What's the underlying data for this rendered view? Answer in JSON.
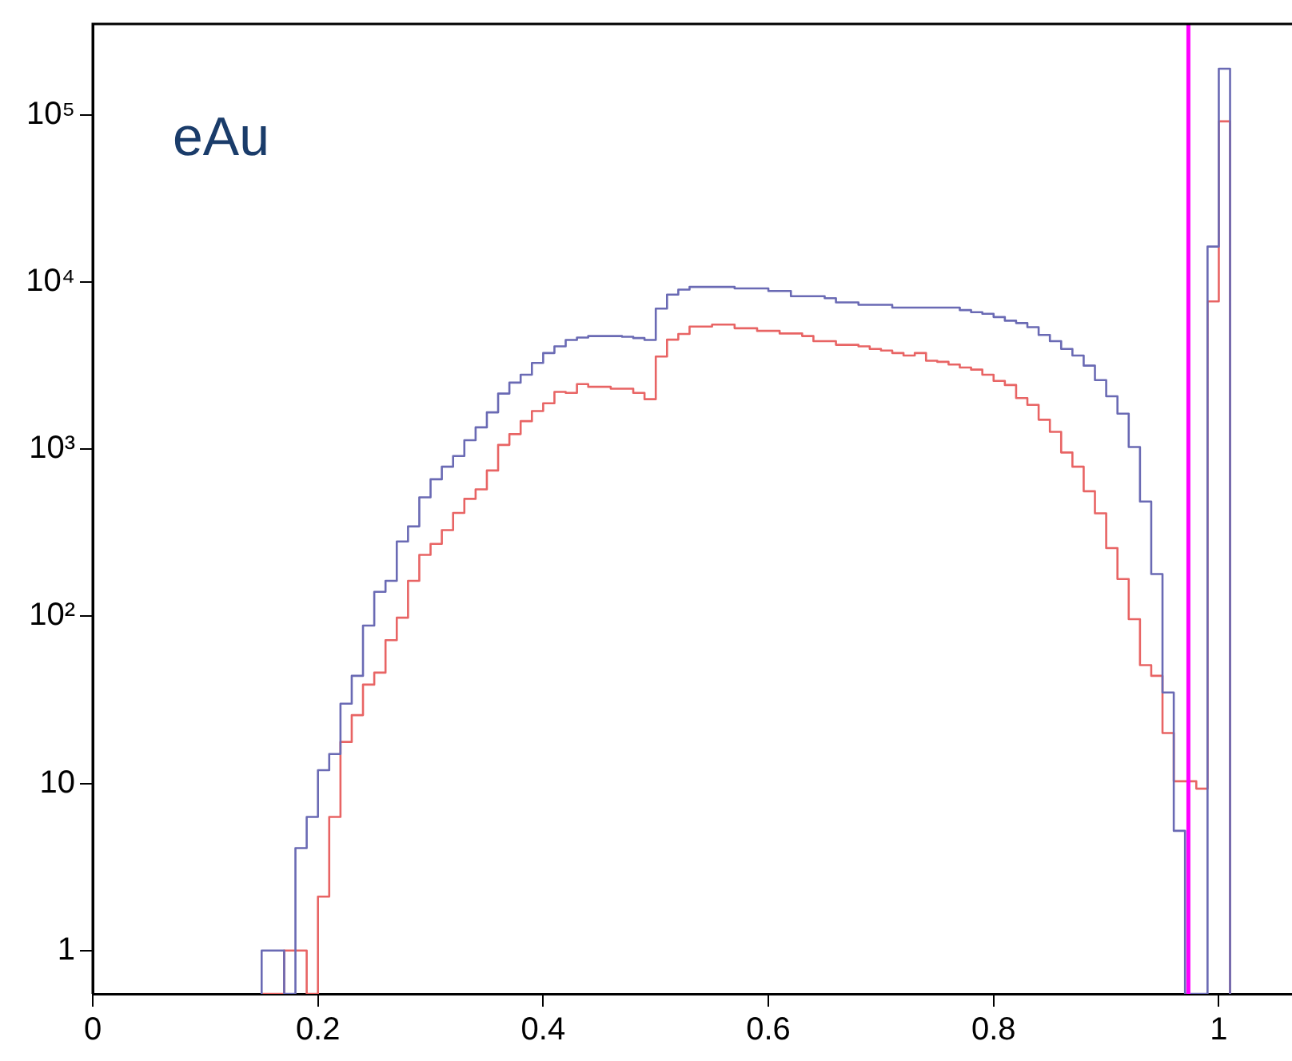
{
  "chart_data": {
    "type": "histogram",
    "bins": [
      0.15,
      0.16,
      0.17,
      0.18,
      0.19,
      0.2,
      0.21,
      0.22,
      0.23,
      0.24,
      0.25,
      0.26,
      0.27,
      0.28,
      0.29,
      0.3,
      0.31,
      0.32,
      0.33,
      0.34,
      0.35,
      0.36,
      0.37,
      0.38,
      0.39,
      0.4,
      0.41,
      0.42,
      0.43,
      0.44,
      0.45,
      0.46,
      0.47,
      0.48,
      0.49,
      0.5,
      0.51,
      0.52,
      0.53,
      0.54,
      0.55,
      0.56,
      0.57,
      0.58,
      0.59,
      0.6,
      0.61,
      0.62,
      0.63,
      0.64,
      0.65,
      0.66,
      0.67,
      0.68,
      0.69,
      0.7,
      0.71,
      0.72,
      0.73,
      0.74,
      0.75,
      0.76,
      0.77,
      0.78,
      0.79,
      0.8,
      0.81,
      0.82,
      0.83,
      0.84,
      0.85,
      0.86,
      0.87,
      0.88,
      0.89,
      0.9,
      0.91,
      0.92,
      0.93,
      0.94,
      0.95,
      0.96,
      0.97,
      0.98,
      0.99,
      1.0,
      1.01
    ],
    "series": [
      {
        "color": "#6a6ab4",
        "values": [
          1,
          1,
          null,
          4.1,
          6.3,
          12,
          15,
          30,
          44,
          88,
          140,
          163,
          280,
          345,
          515,
          660,
          785,
          910,
          1130,
          1350,
          1660,
          2150,
          2500,
          2790,
          3280,
          3760,
          4120,
          4500,
          4650,
          4750,
          4750,
          4750,
          4700,
          4620,
          4500,
          6930,
          8400,
          9000,
          9350,
          9350,
          9350,
          9350,
          9160,
          9160,
          9160,
          8830,
          8830,
          8230,
          8230,
          8230,
          8000,
          7550,
          7550,
          7300,
          7300,
          7300,
          7030,
          7030,
          7030,
          7030,
          7030,
          7030,
          6790,
          6600,
          6460,
          6170,
          5870,
          5680,
          5370,
          4820,
          4430,
          3980,
          3630,
          3160,
          2590,
          2070,
          1630,
          1030,
          486,
          179,
          35,
          5.2,
          null,
          null,
          16300,
          189000
        ]
      },
      {
        "color": "#e86464",
        "values": [
          null,
          null,
          1,
          1,
          null,
          2.1,
          6.3,
          17.7,
          25.6,
          39,
          46,
          72,
          98,
          163,
          233,
          271,
          328,
          415,
          504,
          575,
          745,
          1060,
          1230,
          1470,
          1690,
          1880,
          2200,
          2170,
          2450,
          2360,
          2360,
          2300,
          2300,
          2170,
          1990,
          3580,
          4520,
          4890,
          5410,
          5410,
          5560,
          5560,
          5290,
          5290,
          5100,
          5100,
          4920,
          4920,
          4750,
          4430,
          4430,
          4210,
          4210,
          4120,
          3980,
          3890,
          3760,
          3630,
          3760,
          3380,
          3330,
          3210,
          3080,
          2990,
          2790,
          2560,
          2420,
          2020,
          1840,
          1500,
          1270,
          955,
          785,
          560,
          413,
          256,
          167,
          96,
          51,
          44,
          20,
          10.3,
          10.3,
          9.3,
          7650,
          91500
        ]
      }
    ],
    "log": "y",
    "xlim": [
      0,
      1.065
    ],
    "xticks": [
      0,
      0.2,
      0.4,
      0.6,
      0.8,
      1
    ],
    "ylim": [
      0.55,
      350000
    ],
    "yticks": [
      1,
      10,
      {
        "value": 100,
        "label": "10²"
      },
      {
        "value": 1000,
        "label": "10³"
      },
      {
        "value": 10000,
        "label": "10⁴"
      },
      {
        "value": 100000,
        "label": "10⁵"
      }
    ],
    "ref_lines": [
      {
        "axis": "x",
        "value": 0.973,
        "color": "#ff00ff"
      }
    ],
    "annotations": [
      "eAu"
    ],
    "grid": false,
    "legend": false
  }
}
